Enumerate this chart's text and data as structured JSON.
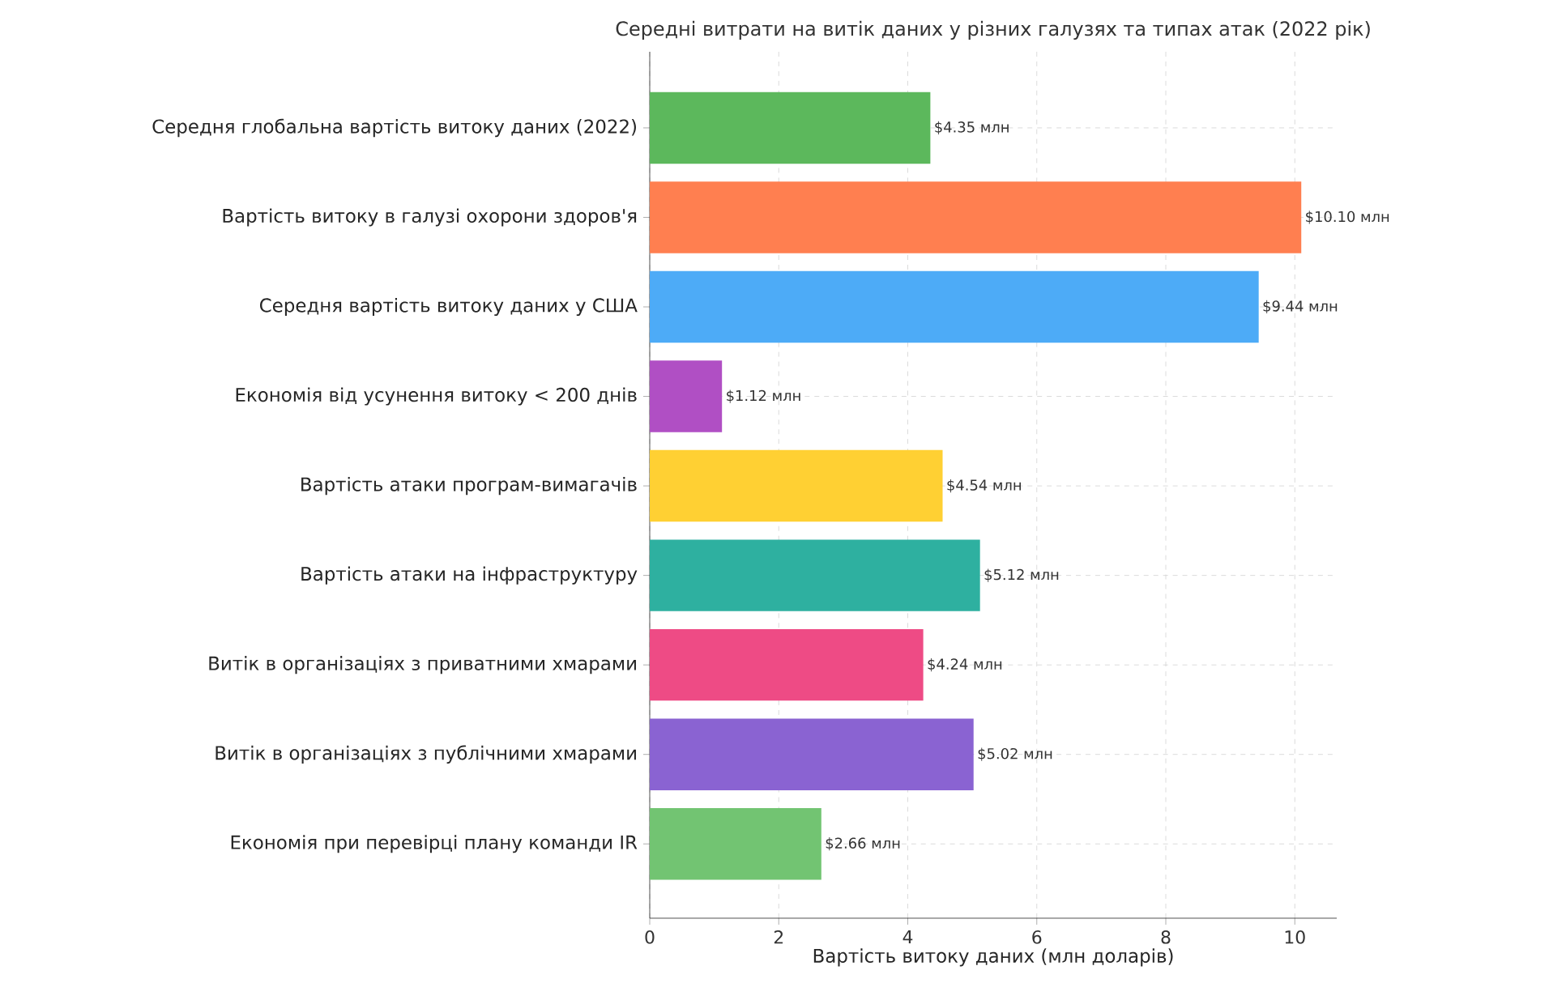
{
  "chart_data": {
    "type": "bar",
    "orientation": "horizontal",
    "title": "Середні витрати на витік даних у різних галузях та типах атак (2022 рік)",
    "xlabel": "Вартість витоку даних (млн доларів)",
    "categories": [
      "Середня глобальна вартість витоку даних (2022)",
      "Вартість витоку в галузі охорони здоров'я",
      "Середня вартість витоку даних у США",
      "Економія від усунення витоку < 200 днів",
      "Вартість атаки програм-вимагачів",
      "Вартість атаки на інфраструктуру",
      "Витік в організаціях з приватними хмарами",
      "Витік в організаціях з публічними хмарами",
      "Економія при перевірці плану команди IR"
    ],
    "values": [
      4.35,
      10.1,
      9.44,
      1.12,
      4.54,
      5.12,
      4.24,
      5.02,
      2.66
    ],
    "value_labels": [
      "$4.35 млн",
      "$10.10 млн",
      "$9.44 млн",
      "$1.12 млн",
      "$4.54 млн",
      "$5.12 млн",
      "$4.24 млн",
      "$5.02 млн",
      "$2.66 млн"
    ],
    "colors": [
      "#5cb85c",
      "#ff7f50",
      "#4dabf7",
      "#b04fc4",
      "#ffd033",
      "#2eb0a0",
      "#ee4b85",
      "#8a63d2",
      "#72c472"
    ],
    "xlim": [
      0,
      10.65
    ],
    "xticks": [
      0,
      2,
      4,
      6,
      8,
      10
    ],
    "grid": true
  }
}
